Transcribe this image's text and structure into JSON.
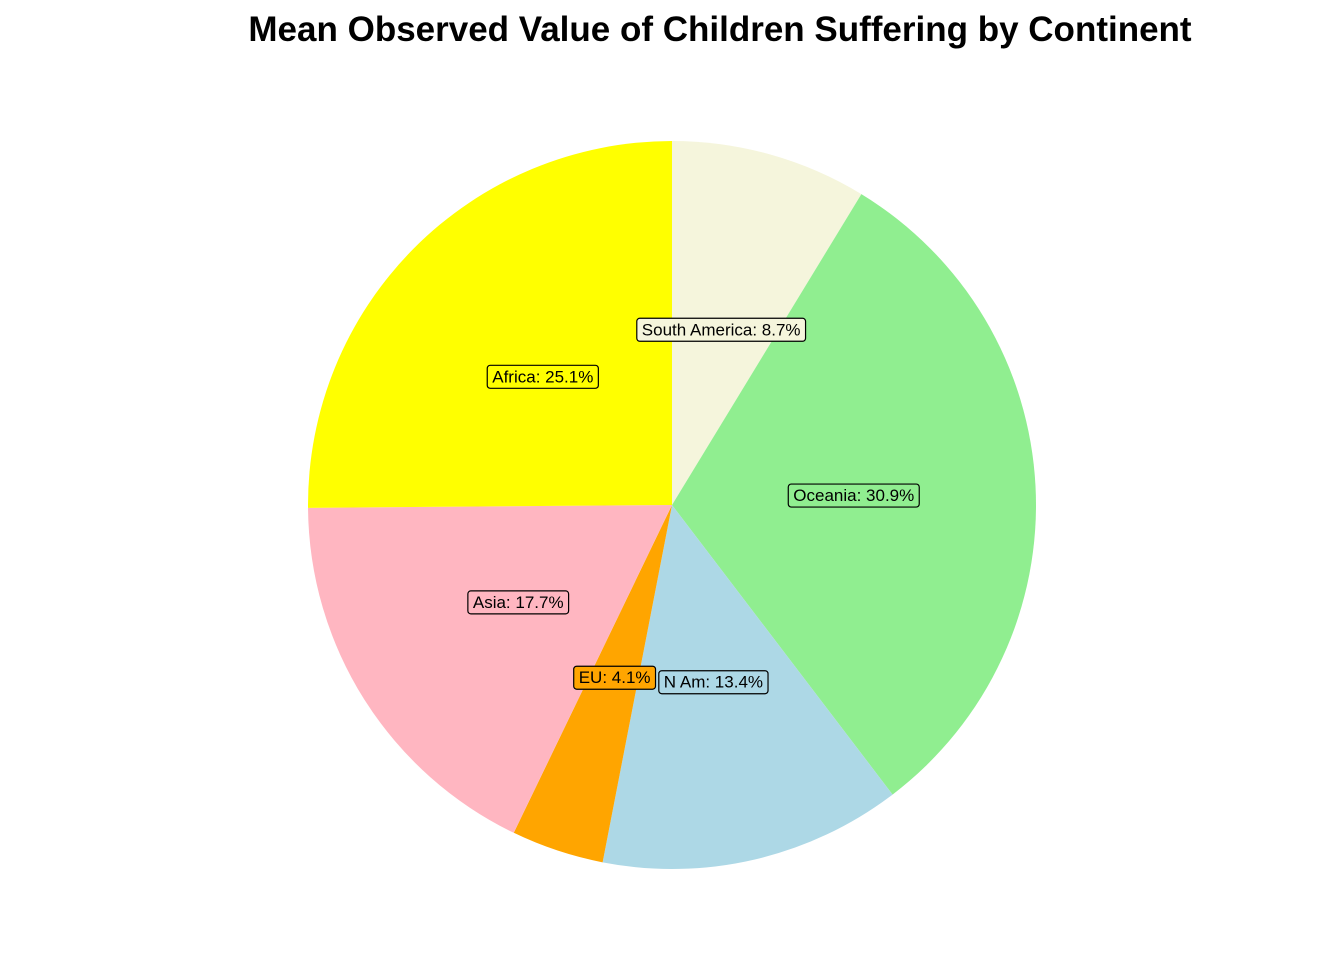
{
  "chart_data": {
    "type": "pie",
    "title": "Mean Observed Value of Children Suffering by Continent",
    "direction": "clockwise-from-top",
    "slices": [
      {
        "label": "South America",
        "display": "South America: 8.7%",
        "value": 8.7,
        "color": "#F5F5DC"
      },
      {
        "label": "Oceania",
        "display": "Oceania: 30.9%",
        "value": 30.9,
        "color": "#90EE90"
      },
      {
        "label": "N Am",
        "display": "N Am: 13.4%",
        "value": 13.4,
        "color": "#ADD8E6"
      },
      {
        "label": "EU",
        "display": "EU: 4.1%",
        "value": 4.1,
        "color": "#FFA500"
      },
      {
        "label": "Asia",
        "display": "Asia: 17.7%",
        "value": 17.7,
        "color": "#FFB6C1"
      },
      {
        "label": "Africa",
        "display": "Africa: 25.1%",
        "value": 25.1,
        "color": "#FFFF00"
      }
    ]
  }
}
